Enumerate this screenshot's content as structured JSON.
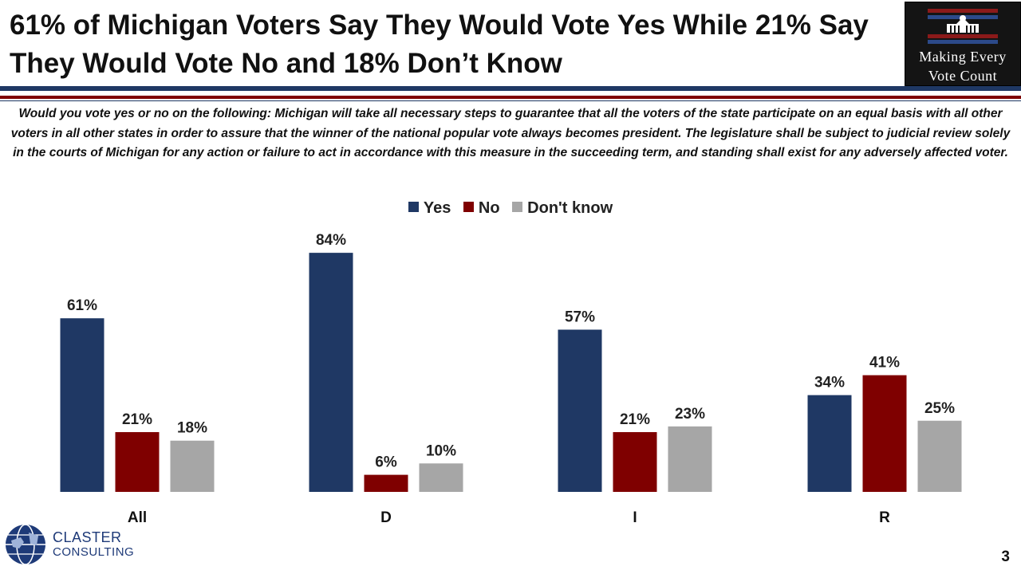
{
  "title": "61% of Michigan Voters Say They Would Vote Yes While 21% Say They Would Vote No and 18% Don’t Know",
  "question": "Would you vote yes or no on the following: Michigan will take all necessary steps to guarantee that all the voters of the state participate on an equal basis with all other voters in all other states in order to assure that the winner of the national popular vote always becomes president. The legislature shall be subject to judicial review solely in the courts of Michigan for any action or failure to act in accordance with this measure in the succeeding term, and standing shall exist for any adversely affected voter.",
  "logo": {
    "line1": "Making Every",
    "line2": "Vote Count",
    "icon": "white-house-icon"
  },
  "footer_logo": {
    "line1": "CLASTER",
    "line2": "CONSULTING",
    "icon": "globe-icon"
  },
  "page_number": "3",
  "colors": {
    "navy": "#1f3864",
    "red": "#7f0000",
    "gray": "#a6a6a6"
  },
  "chart_data": {
    "type": "bar",
    "categories": [
      "All",
      "D",
      "I",
      "R"
    ],
    "series": [
      {
        "name": "Yes",
        "values": [
          61,
          84,
          57,
          34
        ],
        "labels": [
          "61%",
          "84%",
          "57%",
          "34%"
        ],
        "color": "#1f3864"
      },
      {
        "name": "No",
        "values": [
          21,
          6,
          21,
          41
        ],
        "labels": [
          "21%",
          "6%",
          "21%",
          "41%"
        ],
        "color": "#7f0000"
      },
      {
        "name": "Don't know",
        "values": [
          18,
          10,
          23,
          25
        ],
        "labels": [
          "18%",
          "10%",
          "23%",
          "25%"
        ],
        "color": "#a6a6a6"
      }
    ],
    "ylim": [
      0,
      100
    ],
    "grid": false,
    "legend_position": "top-center"
  }
}
